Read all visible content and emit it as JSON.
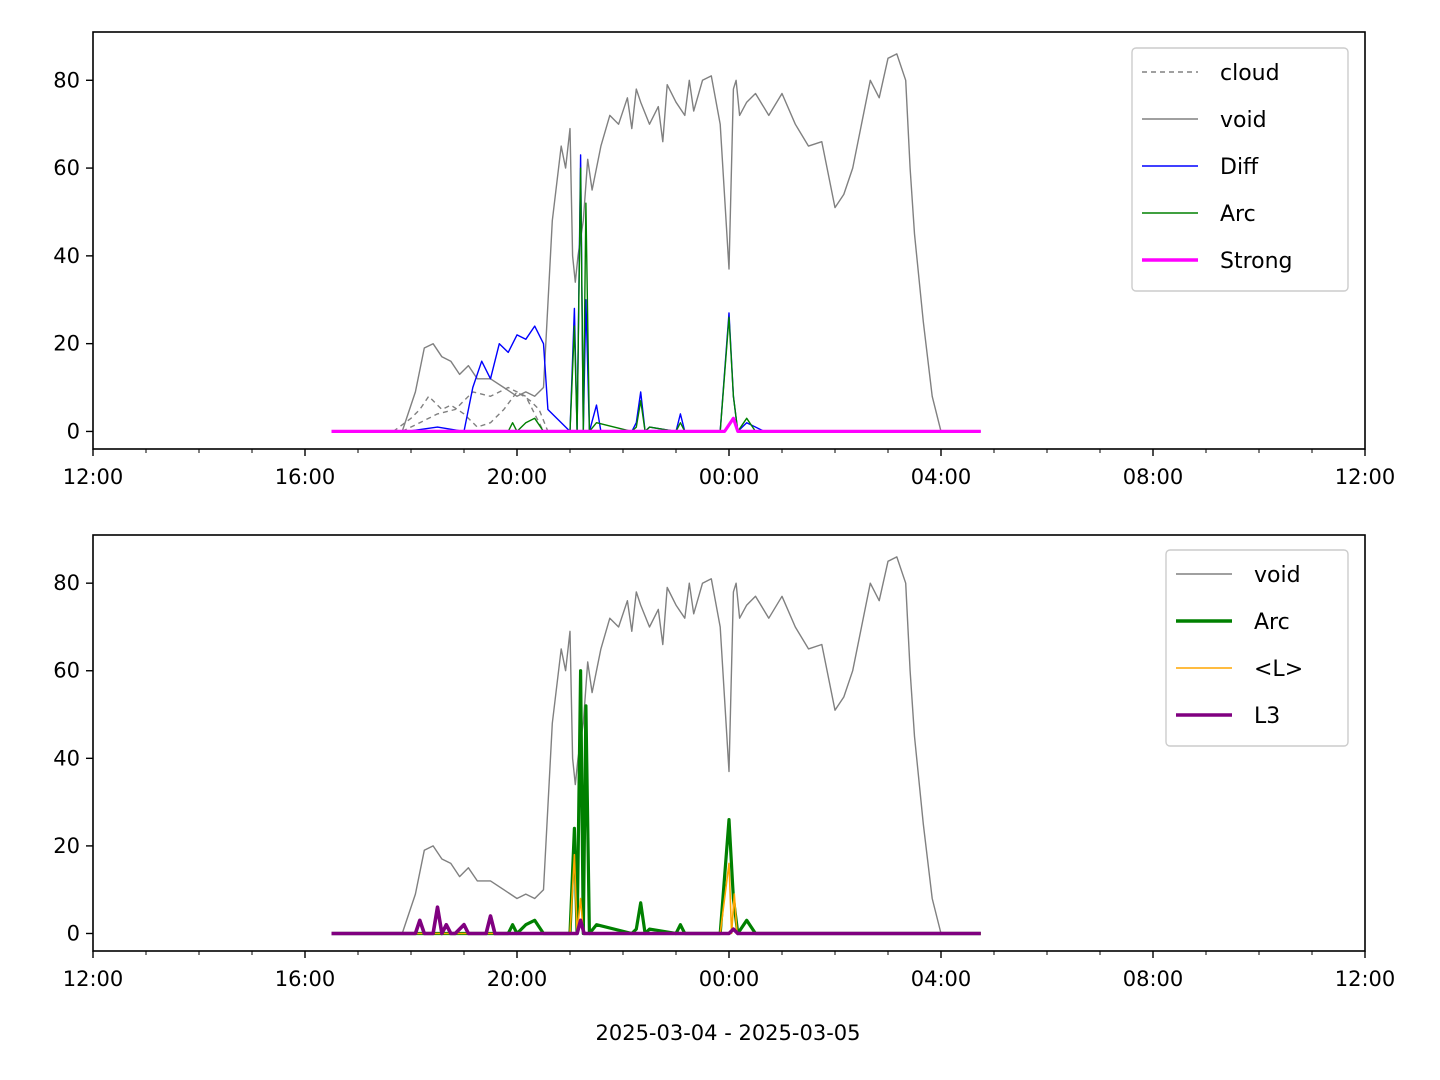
{
  "figure": {
    "xlabel": "2025-03-04 - 2025-03-05"
  },
  "chart_data": [
    {
      "type": "line",
      "x_tick_labels": [
        "12:00",
        "16:00",
        "20:00",
        "00:00",
        "04:00",
        "08:00",
        "12:00"
      ],
      "y_tick_labels": [
        "0",
        "20",
        "40",
        "60",
        "80"
      ],
      "xlim": [
        "2025-03-04T12:00",
        "2025-03-05T12:00"
      ],
      "ylim": [
        -4,
        91
      ],
      "legend_position": "top-right",
      "legend": [
        {
          "label": "cloud",
          "color": "#808080",
          "style": "dashed"
        },
        {
          "label": "void",
          "color": "#808080",
          "style": "solid"
        },
        {
          "label": "Diff",
          "color": "#0000ff",
          "style": "solid"
        },
        {
          "label": "Arc",
          "color": "#008000",
          "style": "solid"
        },
        {
          "label": "Strong",
          "color": "#ff00ff",
          "style": "solid-thick"
        }
      ],
      "series": [
        {
          "name": "cloud",
          "color": "#808080",
          "width": 1.4,
          "dash": "5,4",
          "x": [
            "2025-03-04T17:40",
            "2025-03-04T18:00",
            "2025-03-04T18:10",
            "2025-03-04T18:20",
            "2025-03-04T18:35",
            "2025-03-04T18:45",
            "2025-03-04T19:00",
            "2025-03-04T19:15",
            "2025-03-04T19:30",
            "2025-03-04T19:45",
            "2025-03-04T20:00",
            "2025-03-04T20:15",
            "2025-03-04T20:25",
            "2025-03-04T20:35"
          ],
          "y": [
            0,
            3,
            5,
            8,
            5,
            6,
            4,
            1,
            2,
            5,
            9,
            7,
            5,
            0
          ]
        },
        {
          "name": "cloud",
          "color": "#808080",
          "width": 1.4,
          "dash": "5,4",
          "x": [
            "2025-03-04T17:50",
            "2025-03-04T18:10",
            "2025-03-04T18:30",
            "2025-03-04T18:50",
            "2025-03-04T19:10",
            "2025-03-04T19:30",
            "2025-03-04T19:50",
            "2025-03-04T20:10",
            "2025-03-04T20:30"
          ],
          "y": [
            0,
            2,
            4,
            5,
            9,
            8,
            10,
            8,
            0
          ]
        },
        {
          "name": "void",
          "color": "#808080",
          "width": 1.4,
          "x": [
            "2025-03-04T16:30",
            "2025-03-04T17:50",
            "2025-03-04T18:05",
            "2025-03-04T18:15",
            "2025-03-04T18:25",
            "2025-03-04T18:35",
            "2025-03-04T18:45",
            "2025-03-04T18:55",
            "2025-03-04T19:05",
            "2025-03-04T19:15",
            "2025-03-04T19:30",
            "2025-03-04T19:45",
            "2025-03-04T20:00",
            "2025-03-04T20:10",
            "2025-03-04T20:20",
            "2025-03-04T20:30",
            "2025-03-04T20:40",
            "2025-03-04T20:50",
            "2025-03-04T20:55",
            "2025-03-04T21:00",
            "2025-03-04T21:03",
            "2025-03-04T21:06",
            "2025-03-04T21:09",
            "2025-03-04T21:15",
            "2025-03-04T21:20",
            "2025-03-04T21:25",
            "2025-03-04T21:30",
            "2025-03-04T21:35",
            "2025-03-04T21:45",
            "2025-03-04T21:55",
            "2025-03-04T22:05",
            "2025-03-04T22:10",
            "2025-03-04T22:15",
            "2025-03-04T22:20",
            "2025-03-04T22:30",
            "2025-03-04T22:40",
            "2025-03-04T22:45",
            "2025-03-04T22:50",
            "2025-03-04T23:00",
            "2025-03-04T23:10",
            "2025-03-04T23:15",
            "2025-03-04T23:20",
            "2025-03-04T23:30",
            "2025-03-04T23:40",
            "2025-03-04T23:50",
            "2025-03-05T00:00",
            "2025-03-05T00:05",
            "2025-03-05T00:08",
            "2025-03-05T00:12",
            "2025-03-05T00:20",
            "2025-03-05T00:30",
            "2025-03-05T00:45",
            "2025-03-05T01:00",
            "2025-03-05T01:15",
            "2025-03-05T01:30",
            "2025-03-05T01:45",
            "2025-03-05T02:00",
            "2025-03-05T02:10",
            "2025-03-05T02:20",
            "2025-03-05T02:30",
            "2025-03-05T02:40",
            "2025-03-05T02:50",
            "2025-03-05T03:00",
            "2025-03-05T03:10",
            "2025-03-05T03:20",
            "2025-03-05T03:25",
            "2025-03-05T03:30",
            "2025-03-05T03:40",
            "2025-03-05T03:50",
            "2025-03-05T04:00",
            "2025-03-05T04:05",
            "2025-03-05T04:45"
          ],
          "y": [
            0,
            0,
            9,
            19,
            20,
            17,
            16,
            13,
            15,
            12,
            12,
            10,
            8,
            9,
            8,
            10,
            48,
            65,
            60,
            69,
            40,
            34,
            40,
            48,
            62,
            55,
            60,
            65,
            72,
            70,
            76,
            69,
            78,
            75,
            70,
            74,
            66,
            79,
            75,
            72,
            80,
            73,
            80,
            81,
            70,
            37,
            78,
            80,
            72,
            75,
            77,
            72,
            77,
            70,
            65,
            66,
            51,
            54,
            60,
            70,
            80,
            76,
            85,
            86,
            80,
            60,
            45,
            25,
            8,
            0,
            0,
            0
          ]
        },
        {
          "name": "Diff",
          "color": "#0000ff",
          "width": 1.4,
          "x": [
            "2025-03-04T17:55",
            "2025-03-04T18:30",
            "2025-03-04T19:00",
            "2025-03-04T19:10",
            "2025-03-04T19:20",
            "2025-03-04T19:30",
            "2025-03-04T19:40",
            "2025-03-04T19:50",
            "2025-03-04T20:00",
            "2025-03-04T20:10",
            "2025-03-04T20:20",
            "2025-03-04T20:30",
            "2025-03-04T20:35",
            "2025-03-04T21:00",
            "2025-03-04T21:05",
            "2025-03-04T21:08",
            "2025-03-04T21:12",
            "2025-03-04T21:15",
            "2025-03-04T21:18",
            "2025-03-04T21:22",
            "2025-03-04T21:30",
            "2025-03-04T21:35",
            "2025-03-04T22:10",
            "2025-03-04T22:15",
            "2025-03-04T22:20",
            "2025-03-04T22:25",
            "2025-03-04T22:30",
            "2025-03-04T23:00",
            "2025-03-04T23:05",
            "2025-03-04T23:10",
            "2025-03-04T23:50",
            "2025-03-05T00:00",
            "2025-03-05T00:05",
            "2025-03-05T00:10",
            "2025-03-05T00:20",
            "2025-03-05T00:40",
            "2025-03-05T00:45"
          ],
          "y": [
            0,
            1,
            0,
            10,
            16,
            12,
            20,
            18,
            22,
            21,
            24,
            20,
            5,
            0,
            28,
            0,
            63,
            0,
            30,
            0,
            6,
            0,
            0,
            2,
            9,
            0,
            1,
            0,
            4,
            0,
            0,
            27,
            8,
            0,
            2,
            0,
            0
          ]
        },
        {
          "name": "Arc",
          "color": "#008000",
          "width": 1.4,
          "x": [
            "2025-03-04T19:50",
            "2025-03-04T19:55",
            "2025-03-04T20:00",
            "2025-03-04T20:10",
            "2025-03-04T20:20",
            "2025-03-04T20:30",
            "2025-03-04T21:00",
            "2025-03-04T21:05",
            "2025-03-04T21:08",
            "2025-03-04T21:12",
            "2025-03-04T21:15",
            "2025-03-04T21:18",
            "2025-03-04T21:22",
            "2025-03-04T21:30",
            "2025-03-04T22:10",
            "2025-03-04T22:15",
            "2025-03-04T22:20",
            "2025-03-04T22:25",
            "2025-03-04T22:30",
            "2025-03-04T23:00",
            "2025-03-04T23:05",
            "2025-03-04T23:10",
            "2025-03-04T23:50",
            "2025-03-05T00:00",
            "2025-03-05T00:05",
            "2025-03-05T00:10",
            "2025-03-05T00:20",
            "2025-03-05T00:30"
          ],
          "y": [
            0,
            2,
            0,
            2,
            3,
            0,
            0,
            24,
            0,
            60,
            0,
            52,
            0,
            2,
            0,
            1,
            7,
            0,
            1,
            0,
            2,
            0,
            0,
            26,
            8,
            0,
            3,
            0
          ]
        },
        {
          "name": "Strong",
          "color": "#ff00ff",
          "width": 3.2,
          "x": [
            "2025-03-04T16:30",
            "2025-03-04T23:55",
            "2025-03-05T00:05",
            "2025-03-05T00:10",
            "2025-03-05T04:45"
          ],
          "y": [
            0,
            0,
            3,
            0,
            0
          ]
        }
      ]
    },
    {
      "type": "line",
      "x_tick_labels": [
        "12:00",
        "16:00",
        "20:00",
        "00:00",
        "04:00",
        "08:00",
        "12:00"
      ],
      "y_tick_labels": [
        "0",
        "20",
        "40",
        "60",
        "80"
      ],
      "xlim": [
        "2025-03-04T12:00",
        "2025-03-05T12:00"
      ],
      "ylim": [
        -4,
        91
      ],
      "legend_position": "top-right",
      "legend": [
        {
          "label": "void",
          "color": "#808080",
          "style": "solid"
        },
        {
          "label": "Arc",
          "color": "#008000",
          "style": "solid-thick"
        },
        {
          "label": "<L>",
          "color": "#ffa500",
          "style": "solid"
        },
        {
          "label": "L3",
          "color": "#800080",
          "style": "solid-thick"
        }
      ],
      "series": [
        {
          "name": "void",
          "color": "#808080",
          "width": 1.4,
          "x": [
            "2025-03-04T16:30",
            "2025-03-04T17:50",
            "2025-03-04T18:05",
            "2025-03-04T18:15",
            "2025-03-04T18:25",
            "2025-03-04T18:35",
            "2025-03-04T18:45",
            "2025-03-04T18:55",
            "2025-03-04T19:05",
            "2025-03-04T19:15",
            "2025-03-04T19:30",
            "2025-03-04T19:45",
            "2025-03-04T20:00",
            "2025-03-04T20:10",
            "2025-03-04T20:20",
            "2025-03-04T20:30",
            "2025-03-04T20:40",
            "2025-03-04T20:50",
            "2025-03-04T20:55",
            "2025-03-04T21:00",
            "2025-03-04T21:03",
            "2025-03-04T21:06",
            "2025-03-04T21:09",
            "2025-03-04T21:15",
            "2025-03-04T21:20",
            "2025-03-04T21:25",
            "2025-03-04T21:30",
            "2025-03-04T21:35",
            "2025-03-04T21:45",
            "2025-03-04T21:55",
            "2025-03-04T22:05",
            "2025-03-04T22:10",
            "2025-03-04T22:15",
            "2025-03-04T22:20",
            "2025-03-04T22:30",
            "2025-03-04T22:40",
            "2025-03-04T22:45",
            "2025-03-04T22:50",
            "2025-03-04T23:00",
            "2025-03-04T23:10",
            "2025-03-04T23:15",
            "2025-03-04T23:20",
            "2025-03-04T23:30",
            "2025-03-04T23:40",
            "2025-03-04T23:50",
            "2025-03-05T00:00",
            "2025-03-05T00:05",
            "2025-03-05T00:08",
            "2025-03-05T00:12",
            "2025-03-05T00:20",
            "2025-03-05T00:30",
            "2025-03-05T00:45",
            "2025-03-05T01:00",
            "2025-03-05T01:15",
            "2025-03-05T01:30",
            "2025-03-05T01:45",
            "2025-03-05T02:00",
            "2025-03-05T02:10",
            "2025-03-05T02:20",
            "2025-03-05T02:30",
            "2025-03-05T02:40",
            "2025-03-05T02:50",
            "2025-03-05T03:00",
            "2025-03-05T03:10",
            "2025-03-05T03:20",
            "2025-03-05T03:25",
            "2025-03-05T03:30",
            "2025-03-05T03:40",
            "2025-03-05T03:50",
            "2025-03-05T04:00",
            "2025-03-05T04:05",
            "2025-03-05T04:45"
          ],
          "y": [
            0,
            0,
            9,
            19,
            20,
            17,
            16,
            13,
            15,
            12,
            12,
            10,
            8,
            9,
            8,
            10,
            48,
            65,
            60,
            69,
            40,
            34,
            40,
            48,
            62,
            55,
            60,
            65,
            72,
            70,
            76,
            69,
            78,
            75,
            70,
            74,
            66,
            79,
            75,
            72,
            80,
            73,
            80,
            81,
            70,
            37,
            78,
            80,
            72,
            75,
            77,
            72,
            77,
            70,
            65,
            66,
            51,
            54,
            60,
            70,
            80,
            76,
            85,
            86,
            80,
            60,
            45,
            25,
            8,
            0,
            0,
            0
          ]
        },
        {
          "name": "Arc",
          "color": "#008000",
          "width": 3.2,
          "x": [
            "2025-03-04T16:30",
            "2025-03-04T19:50",
            "2025-03-04T19:55",
            "2025-03-04T20:00",
            "2025-03-04T20:10",
            "2025-03-04T20:20",
            "2025-03-04T20:30",
            "2025-03-04T21:00",
            "2025-03-04T21:05",
            "2025-03-04T21:08",
            "2025-03-04T21:12",
            "2025-03-04T21:15",
            "2025-03-04T21:18",
            "2025-03-04T21:22",
            "2025-03-04T21:30",
            "2025-03-04T22:10",
            "2025-03-04T22:15",
            "2025-03-04T22:20",
            "2025-03-04T22:25",
            "2025-03-04T22:30",
            "2025-03-04T23:00",
            "2025-03-04T23:05",
            "2025-03-04T23:10",
            "2025-03-04T23:50",
            "2025-03-05T00:00",
            "2025-03-05T00:05",
            "2025-03-05T00:10",
            "2025-03-05T00:20",
            "2025-03-05T00:30",
            "2025-03-05T04:45"
          ],
          "y": [
            0,
            0,
            2,
            0,
            2,
            3,
            0,
            0,
            24,
            0,
            60,
            0,
            52,
            0,
            2,
            0,
            1,
            7,
            0,
            1,
            0,
            2,
            0,
            0,
            26,
            8,
            0,
            3,
            0,
            0
          ]
        },
        {
          "name": "<L>",
          "color": "#ffa500",
          "width": 1.6,
          "x": [
            "2025-03-04T16:30",
            "2025-03-04T21:00",
            "2025-03-04T21:05",
            "2025-03-04T21:08",
            "2025-03-04T21:12",
            "2025-03-04T21:15",
            "2025-03-04T23:50",
            "2025-03-05T00:00",
            "2025-03-05T00:03",
            "2025-03-05T00:06",
            "2025-03-05T00:09",
            "2025-03-05T00:15",
            "2025-03-05T04:45"
          ],
          "y": [
            0,
            0,
            18,
            0,
            8,
            0,
            0,
            16,
            0,
            9,
            0,
            0,
            0
          ]
        },
        {
          "name": "L3",
          "color": "#800080",
          "width": 3.6,
          "x": [
            "2025-03-04T16:30",
            "2025-03-04T18:05",
            "2025-03-04T18:10",
            "2025-03-04T18:15",
            "2025-03-04T18:25",
            "2025-03-04T18:30",
            "2025-03-04T18:35",
            "2025-03-04T18:40",
            "2025-03-04T18:45",
            "2025-03-04T18:50",
            "2025-03-04T19:00",
            "2025-03-04T19:05",
            "2025-03-04T19:10",
            "2025-03-04T19:25",
            "2025-03-04T19:30",
            "2025-03-04T19:35",
            "2025-03-04T21:08",
            "2025-03-04T21:12",
            "2025-03-04T21:16",
            "2025-03-05T00:00",
            "2025-03-05T00:05",
            "2025-03-05T00:10",
            "2025-03-05T04:45"
          ],
          "y": [
            0,
            0,
            3,
            0,
            0,
            6,
            0,
            2,
            0,
            0,
            2,
            0,
            0,
            0,
            4,
            0,
            0,
            3,
            0,
            0,
            1,
            0,
            0
          ]
        }
      ]
    }
  ]
}
